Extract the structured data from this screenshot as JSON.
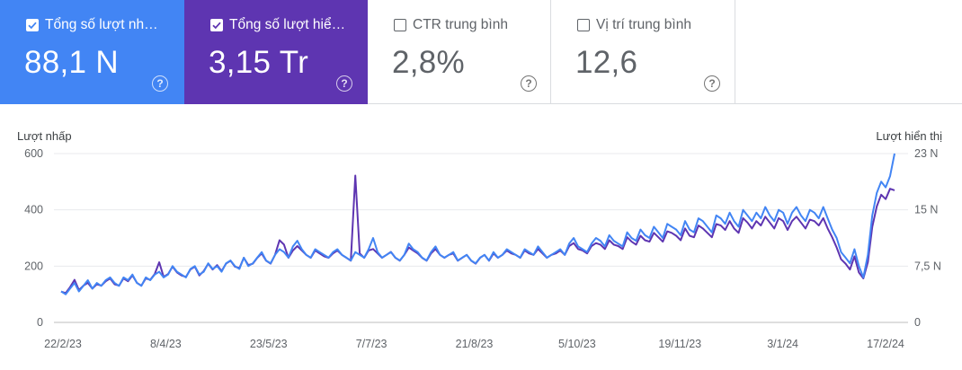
{
  "metrics": [
    {
      "label": "Tổng số lượt nh…",
      "value": "88,1 N",
      "checked": true,
      "color": "#4285f4",
      "help_icon": "help-circle-icon"
    },
    {
      "label": "Tổng số lượt hiể…",
      "value": "3,15 Tr",
      "checked": true,
      "color": "#5e35b1",
      "help_icon": "help-circle-icon"
    },
    {
      "label": "CTR trung bình",
      "value": "2,8%",
      "checked": false,
      "help_icon": "help-circle-icon"
    },
    {
      "label": "Vị trí trung bình",
      "value": "12,6",
      "checked": false,
      "help_icon": "help-circle-icon"
    }
  ],
  "help_glyph": "?",
  "chart_data": {
    "type": "line",
    "ylabel_left": "Lượt nhấp",
    "ylabel_right": "Lượt hiển thị",
    "y_left_ticks": [
      "600",
      "400",
      "200",
      "0"
    ],
    "y_right_ticks": [
      "23 N",
      "15 N",
      "7,5 N",
      "0"
    ],
    "ylim_left": [
      0,
      600
    ],
    "ylim_right": [
      0,
      23000
    ],
    "grid": true,
    "x_ticks": [
      "22/2/23",
      "8/4/23",
      "23/5/23",
      "7/7/23",
      "21/8/23",
      "5/10/23",
      "19/11/23",
      "3/1/24",
      "17/2/24"
    ],
    "series": [
      {
        "name": "Tổng số lượt nhấp",
        "axis": "left",
        "color": "#4285f4",
        "values": [
          110,
          100,
          120,
          140,
          110,
          130,
          150,
          120,
          140,
          130,
          150,
          160,
          140,
          130,
          160,
          150,
          170,
          140,
          130,
          160,
          150,
          170,
          180,
          160,
          170,
          200,
          180,
          170,
          160,
          190,
          200,
          170,
          180,
          210,
          190,
          200,
          180,
          210,
          220,
          200,
          190,
          230,
          200,
          210,
          230,
          250,
          220,
          210,
          240,
          260,
          250,
          230,
          270,
          290,
          260,
          240,
          230,
          260,
          250,
          240,
          230,
          250,
          260,
          240,
          230,
          220,
          250,
          240,
          230,
          260,
          300,
          250,
          230,
          240,
          250,
          230,
          220,
          240,
          280,
          260,
          250,
          230,
          220,
          250,
          270,
          240,
          230,
          240,
          250,
          220,
          230,
          240,
          220,
          210,
          230,
          240,
          220,
          250,
          230,
          240,
          260,
          250,
          240,
          230,
          260,
          250,
          240,
          270,
          250,
          230,
          240,
          250,
          260,
          240,
          280,
          300,
          270,
          260,
          250,
          280,
          300,
          290,
          270,
          310,
          290,
          280,
          270,
          320,
          300,
          290,
          330,
          310,
          300,
          340,
          320,
          300,
          350,
          340,
          330,
          310,
          360,
          330,
          320,
          370,
          360,
          340,
          320,
          380,
          370,
          350,
          390,
          360,
          340,
          400,
          380,
          360,
          390,
          370,
          410,
          380,
          360,
          400,
          390,
          350,
          390,
          410,
          380,
          360,
          400,
          390,
          370,
          410,
          370,
          330,
          300,
          250,
          230,
          210,
          260,
          200,
          160,
          240,
          380,
          460,
          500,
          480,
          520,
          600
        ]
      },
      {
        "name": "Tổng số lượt hiển thị",
        "axis": "right",
        "color": "#5e35b1",
        "values": [
          4200,
          4000,
          4800,
          5800,
          4400,
          5000,
          5400,
          4600,
          5200,
          5000,
          5600,
          6000,
          5200,
          5000,
          6000,
          5600,
          6400,
          5400,
          5000,
          6000,
          5800,
          6600,
          8200,
          6200,
          6600,
          7600,
          6800,
          6400,
          6200,
          7200,
          7600,
          6400,
          7000,
          8000,
          7200,
          7800,
          7000,
          8000,
          8400,
          7600,
          7400,
          8800,
          7800,
          8000,
          8800,
          9400,
          8400,
          8000,
          9200,
          11200,
          10600,
          8800,
          9800,
          10400,
          9800,
          9200,
          8800,
          9800,
          9400,
          9000,
          8800,
          9400,
          9800,
          9200,
          8800,
          8400,
          20000,
          9400,
          8800,
          9800,
          10000,
          9400,
          8800,
          9200,
          9600,
          8800,
          8400,
          9200,
          10200,
          9800,
          9400,
          8800,
          8400,
          9400,
          10000,
          9200,
          8800,
          9200,
          9400,
          8400,
          8800,
          9200,
          8400,
          8000,
          8800,
          9200,
          8400,
          9400,
          8800,
          9200,
          9800,
          9400,
          9200,
          8800,
          9800,
          9400,
          9200,
          10000,
          9400,
          8800,
          9200,
          9400,
          9800,
          9200,
          10400,
          10800,
          10000,
          9800,
          9400,
          10400,
          10800,
          10600,
          10000,
          11200,
          10600,
          10400,
          10000,
          11600,
          11000,
          10600,
          11800,
          11200,
          11000,
          12200,
          11600,
          11000,
          12400,
          12200,
          11800,
          11200,
          12800,
          11800,
          11600,
          13200,
          12800,
          12200,
          11600,
          13400,
          13200,
          12600,
          13800,
          12800,
          12200,
          14200,
          13600,
          12800,
          13800,
          13200,
          14400,
          13600,
          12800,
          14200,
          13800,
          12600,
          13800,
          14400,
          13600,
          12800,
          14000,
          13800,
          13200,
          14200,
          12800,
          11600,
          10200,
          8600,
          8000,
          7200,
          9000,
          6800,
          6000,
          8200,
          13000,
          15800,
          17400,
          16800,
          18200,
          18000
        ]
      }
    ]
  }
}
